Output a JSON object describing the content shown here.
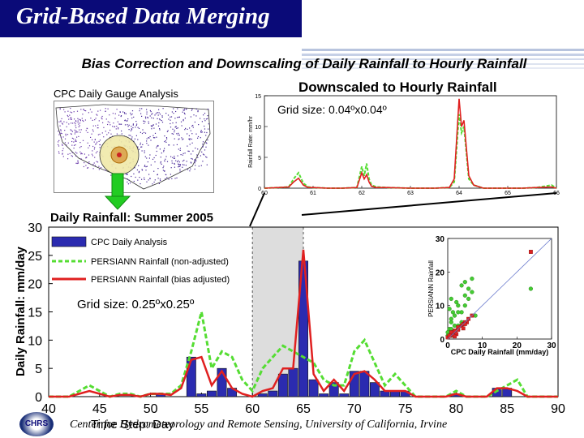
{
  "slide": {
    "title": "Grid-Based Data Merging",
    "subtitle": "Bias Correction and Downscaling of Daily Rainfall to Hourly Rainfall",
    "map_caption": "CPC Daily Gauge Analysis",
    "downscaled_caption": "Downscaled to Hourly Rainfall",
    "footer": "Center for Hydrometeorology and Remote Sensing, University of California, Irvine",
    "logo_text": "CHRS",
    "colors": {
      "title_bg": "#0a0a78",
      "bar": "#2b2bb0",
      "persiann": "#55dd33",
      "bias": "#e02020",
      "shade": "#dddddd"
    }
  },
  "chart_data": [
    {
      "id": "main",
      "type": "bar",
      "title": "Daily Rainfall: Summer 2005",
      "annotation": "Grid size: 0.25ºx0.25º",
      "xlabel": "Time Step: Day",
      "ylabel": "Daily Rainfall: mm/day",
      "xlim": [
        40,
        90
      ],
      "ylim": [
        0,
        30
      ],
      "xticks": [
        40,
        45,
        50,
        55,
        60,
        65,
        70,
        75,
        80,
        85,
        90
      ],
      "yticks": [
        0,
        5,
        10,
        15,
        20,
        25,
        30
      ],
      "highlight_range": [
        60,
        65
      ],
      "legend": [
        "CPC Daily Analysis",
        "PERSIANN Rainfall (non-adjusted)",
        "PERSIANN Rainfall (bias adjusted)"
      ],
      "legend_position": "top-left",
      "x": [
        40,
        41,
        42,
        43,
        44,
        45,
        46,
        47,
        48,
        49,
        50,
        51,
        52,
        53,
        54,
        55,
        56,
        57,
        58,
        59,
        60,
        61,
        62,
        63,
        64,
        65,
        66,
        67,
        68,
        69,
        70,
        71,
        72,
        73,
        74,
        75,
        76,
        77,
        78,
        79,
        80,
        81,
        82,
        83,
        84,
        85,
        86,
        87,
        88,
        89,
        90
      ],
      "series": [
        {
          "name": "CPC Daily Analysis",
          "type": "bar",
          "values": [
            0,
            0,
            0,
            0,
            0,
            0,
            0,
            0,
            0,
            0,
            0,
            0.5,
            0,
            0,
            7,
            0.5,
            1,
            5,
            1.5,
            0,
            0,
            0.5,
            1,
            4,
            5,
            24,
            3,
            0.5,
            2.5,
            0.5,
            4.5,
            4.5,
            2.5,
            1,
            1,
            1,
            0,
            0,
            0,
            0,
            0.5,
            0,
            0,
            0,
            1.5,
            1.5,
            0,
            0,
            0,
            0,
            0
          ]
        },
        {
          "name": "PERSIANN Rainfall (non-adjusted)",
          "type": "line",
          "values": [
            0,
            0,
            0,
            1,
            2,
            1,
            0,
            0.5,
            0.5,
            0,
            0.5,
            0.5,
            0.5,
            2,
            8,
            15,
            5,
            8,
            7,
            3,
            1,
            5,
            7,
            9,
            8,
            7,
            6,
            3,
            2,
            2,
            8,
            10,
            6,
            2,
            4,
            2,
            0,
            0,
            0,
            0,
            1,
            0,
            0,
            0,
            1,
            2,
            3,
            0,
            0,
            0,
            0
          ]
        },
        {
          "name": "PERSIANN Rainfall (bias adjusted)",
          "type": "line",
          "values": [
            0,
            0,
            0,
            0.5,
            1,
            0.5,
            0,
            0.3,
            0.3,
            0,
            0.5,
            0.5,
            0.3,
            1.5,
            6.5,
            7,
            2,
            4.5,
            1.5,
            0.5,
            0,
            1,
            1.5,
            5,
            5,
            26,
            4,
            1,
            3,
            1,
            4,
            4.5,
            3,
            1,
            1,
            1,
            0,
            0,
            0,
            0,
            0.5,
            0,
            0,
            0,
            1.5,
            1.5,
            1,
            0,
            0,
            0,
            0
          ]
        }
      ]
    },
    {
      "id": "hourly",
      "type": "line",
      "title": "",
      "annotation": "Grid size: 0.04ºx0.04º",
      "xlabel": "",
      "ylabel": "Rainfall Rate: mm/hr",
      "xlim": [
        60,
        66
      ],
      "ylim": [
        0,
        15
      ],
      "xticks": [
        60,
        61,
        62,
        63,
        64,
        65,
        66
      ],
      "yticks": [
        0,
        5,
        10,
        15
      ],
      "series": [
        {
          "name": "",
          "color_key": "persiann",
          "x": [
            60,
            60.3,
            60.5,
            60.6,
            60.7,
            60.8,
            60.9,
            61,
            61.3,
            61.6,
            61.9,
            62,
            62.05,
            62.1,
            62.15,
            62.2,
            62.3,
            62.5,
            63,
            63.5,
            63.8,
            63.9,
            64,
            64.05,
            64.1,
            64.2,
            64.3,
            64.5,
            64.8,
            65,
            65.3,
            65.6,
            65.9,
            66
          ],
          "y": [
            0,
            0.1,
            0.2,
            1.5,
            2.5,
            0.8,
            0.2,
            0.1,
            0,
            0,
            0.1,
            3.5,
            2,
            4,
            1.5,
            0.5,
            0.2,
            0.1,
            0,
            0,
            0.1,
            1,
            12,
            9,
            10,
            1.5,
            0.5,
            0,
            0,
            0,
            0,
            0.1,
            0.5,
            0
          ]
        },
        {
          "name": "",
          "color_key": "bias",
          "x": [
            60,
            60.3,
            60.5,
            60.6,
            60.7,
            60.8,
            60.9,
            61,
            61.3,
            61.6,
            61.9,
            62,
            62.05,
            62.1,
            62.15,
            62.2,
            62.3,
            62.5,
            63,
            63.5,
            63.8,
            63.9,
            64,
            64.05,
            64.1,
            64.2,
            64.3,
            64.5,
            64.8,
            65,
            65.3,
            65.6,
            65.9,
            66
          ],
          "y": [
            0,
            0.1,
            0.2,
            1,
            1.6,
            0.5,
            0.1,
            0.1,
            0,
            0,
            0.1,
            2.5,
            1.5,
            2.2,
            1,
            0.3,
            0.1,
            0.1,
            0,
            0,
            0.1,
            1.5,
            14.5,
            10,
            11,
            2,
            0.5,
            0,
            0,
            0,
            0,
            0.1,
            0.2,
            0
          ]
        }
      ]
    },
    {
      "id": "scatter",
      "type": "scatter",
      "title": "",
      "xlabel": "CPC Daily Rainfall (mm/day)",
      "ylabel": "PERSIANN Rainfall",
      "xlim": [
        0,
        30
      ],
      "ylim": [
        0,
        30
      ],
      "xticks": [
        0,
        10,
        20,
        30
      ],
      "yticks": [
        0,
        10,
        20,
        30
      ],
      "series": [
        {
          "name": "",
          "color_key": "persiann",
          "x": [
            0,
            0.5,
            1,
            1.5,
            2,
            3,
            4,
            4,
            5,
            5,
            6,
            7,
            7,
            1,
            2,
            3,
            1,
            0.5,
            2.5,
            8,
            4,
            1,
            0,
            5,
            3,
            6,
            2,
            1,
            24
          ],
          "y": [
            1,
            3,
            5,
            8,
            7,
            10,
            8,
            16,
            13,
            17,
            15,
            18,
            14,
            6,
            2,
            4,
            12,
            9,
            11,
            7,
            5,
            3,
            2,
            10,
            8,
            12,
            4,
            1,
            15
          ]
        },
        {
          "name": "",
          "color_key": "bias",
          "x": [
            0,
            0.5,
            1,
            1.5,
            2,
            3,
            4,
            4.5,
            5,
            5.5,
            6,
            7,
            1,
            2,
            2.5,
            3,
            1,
            0.5,
            24,
            5,
            3,
            4.5,
            2
          ],
          "y": [
            0.5,
            1,
            1.5,
            2,
            2.5,
            3,
            4,
            4.5,
            5,
            5,
            6,
            7,
            1.2,
            2.2,
            1.5,
            3.5,
            2,
            1,
            26,
            4.5,
            2.8,
            3.2,
            0.8
          ]
        },
        {
          "name": "",
          "color_key": "line",
          "x": [
            0,
            30
          ],
          "y": [
            0,
            30
          ]
        }
      ]
    }
  ]
}
